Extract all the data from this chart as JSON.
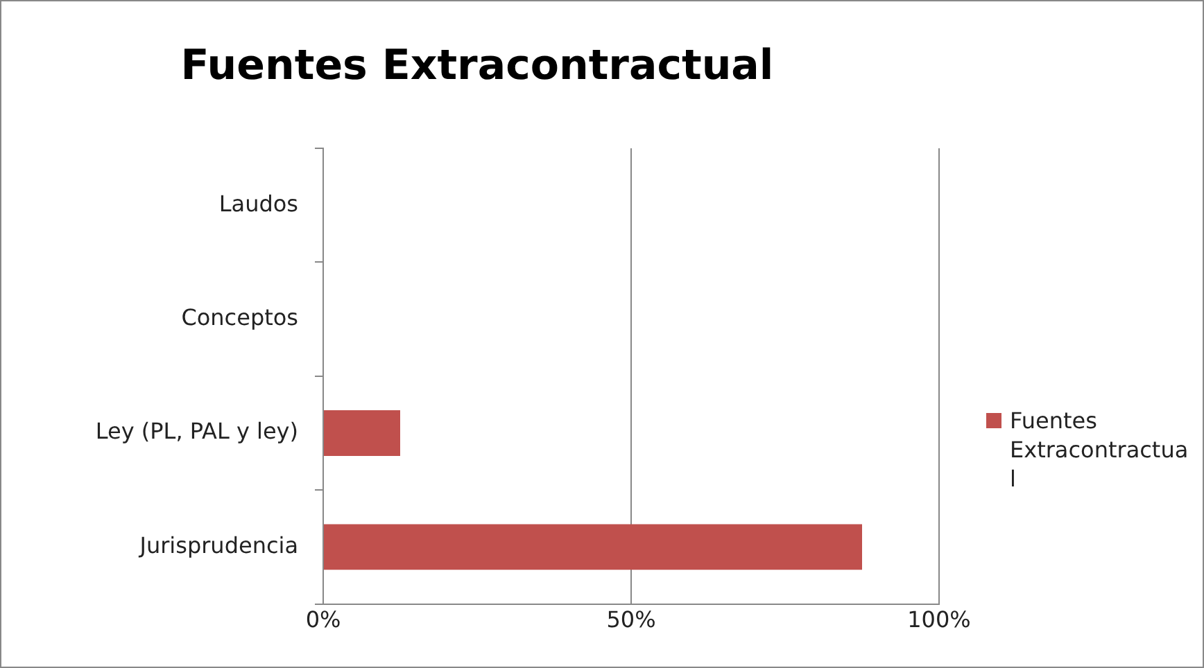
{
  "chart_data": {
    "type": "bar",
    "orientation": "horizontal",
    "title": "Fuentes Extracontractual",
    "categories": [
      "Laudos",
      "Conceptos",
      "Ley (PL, PAL y ley)",
      "Jurisprudencia"
    ],
    "series": [
      {
        "name": "Fuentes Extracontractual",
        "color": "#c0504d",
        "values": [
          0,
          0,
          12.5,
          87.5
        ]
      }
    ],
    "xlim": [
      0,
      100
    ],
    "xticks": [
      {
        "value": 0,
        "label": "0%"
      },
      {
        "value": 50,
        "label": "50%"
      },
      {
        "value": 100,
        "label": "100%"
      }
    ],
    "grid": "x",
    "legend": "right"
  }
}
